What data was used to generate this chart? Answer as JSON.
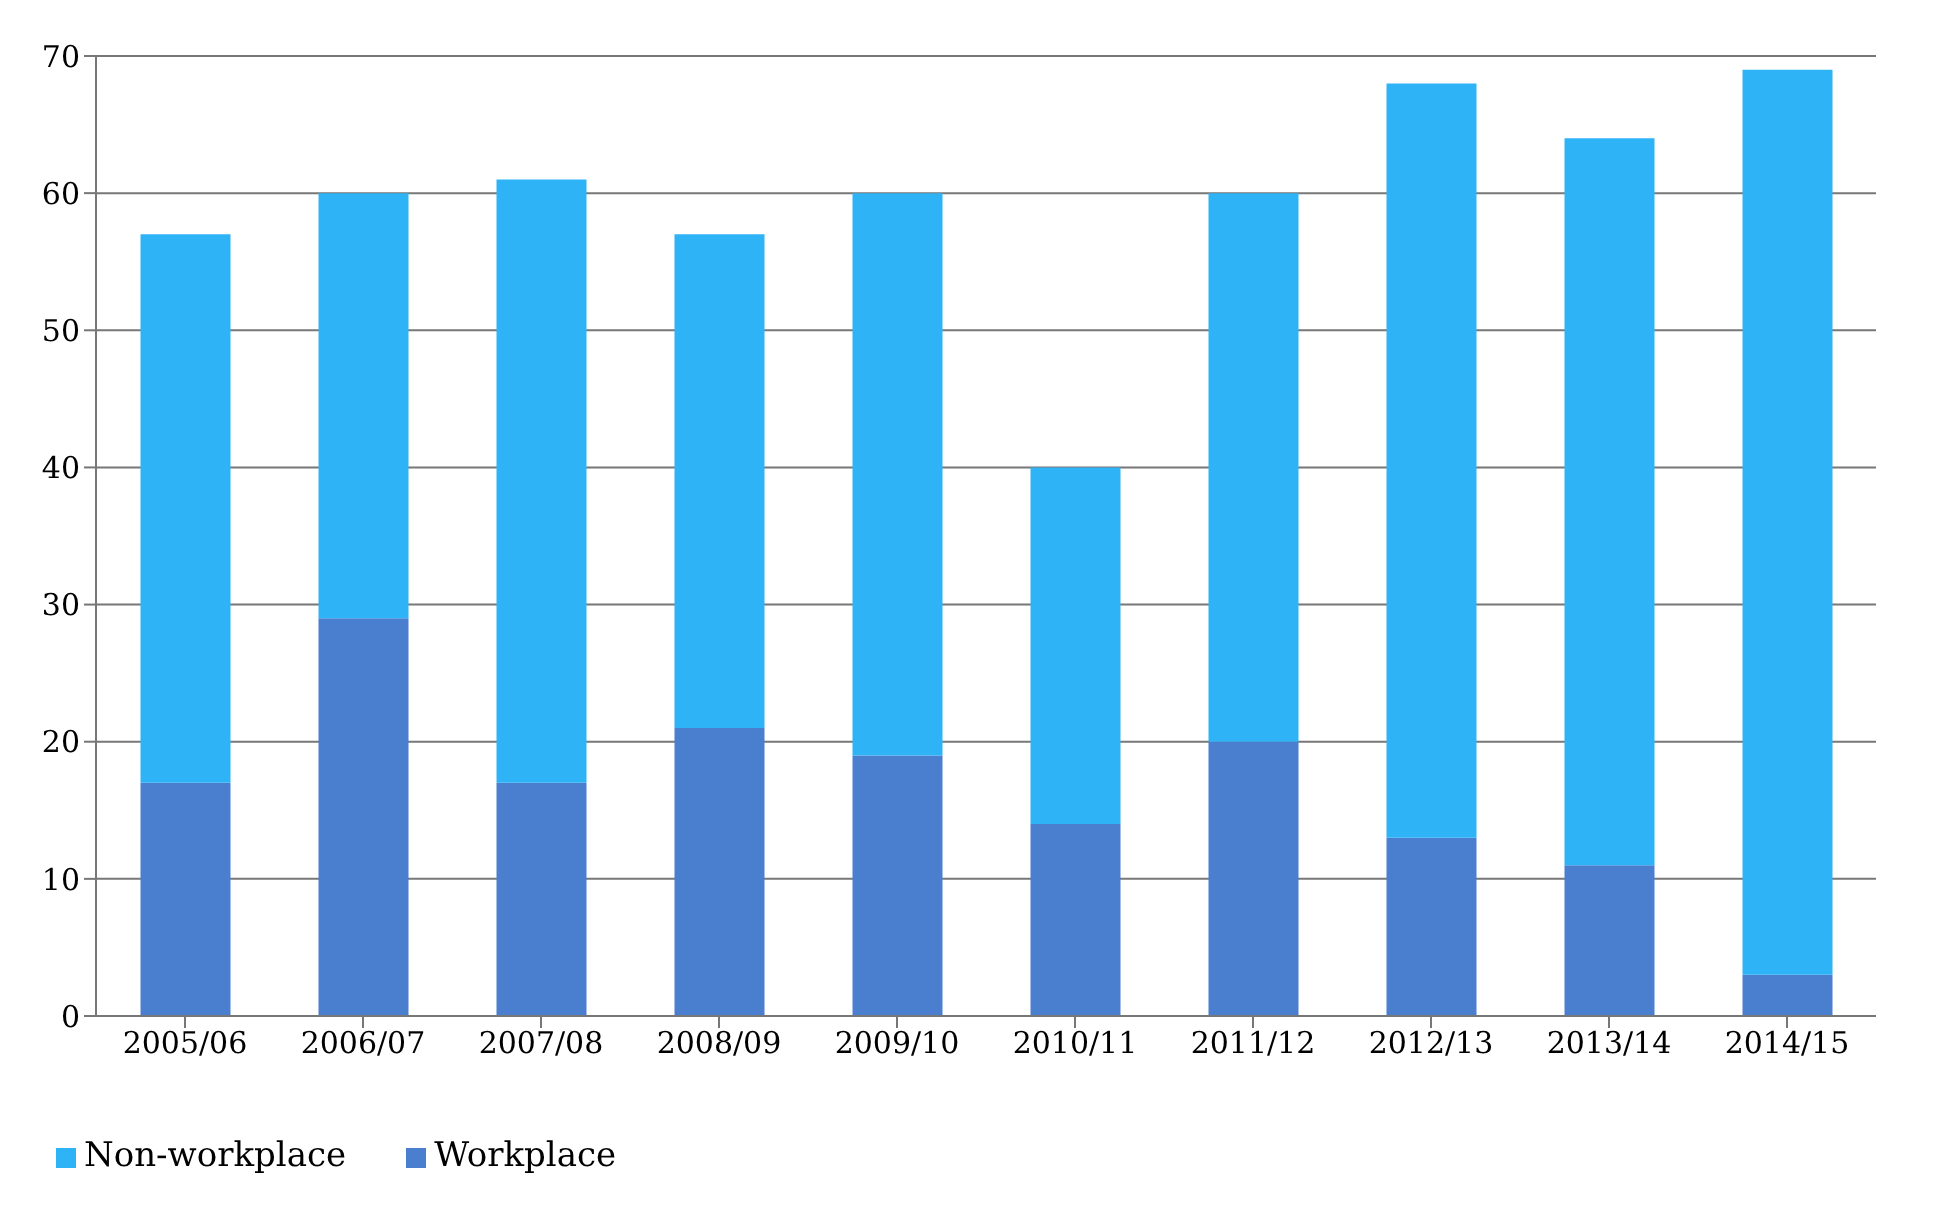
{
  "chart_data": {
    "type": "bar",
    "stacked": true,
    "categories": [
      "2005/06",
      "2006/07",
      "2007/08",
      "2008/09",
      "2009/10",
      "2010/11",
      "2011/12",
      "2012/13",
      "2013/14",
      "2014/15"
    ],
    "series": [
      {
        "name": "Workplace",
        "color": "#4a7fd0",
        "values": [
          17,
          29,
          17,
          21,
          19,
          14,
          20,
          13,
          11,
          3
        ]
      },
      {
        "name": "Non-workplace",
        "color": "#2eb4f6",
        "values": [
          40,
          31,
          44,
          36,
          41,
          26,
          40,
          55,
          53,
          66
        ]
      }
    ],
    "ylim": [
      0,
      70
    ],
    "yticks": [
      0,
      10,
      20,
      30,
      40,
      50,
      60,
      70
    ],
    "grid": "y",
    "legend": "bottom left"
  }
}
